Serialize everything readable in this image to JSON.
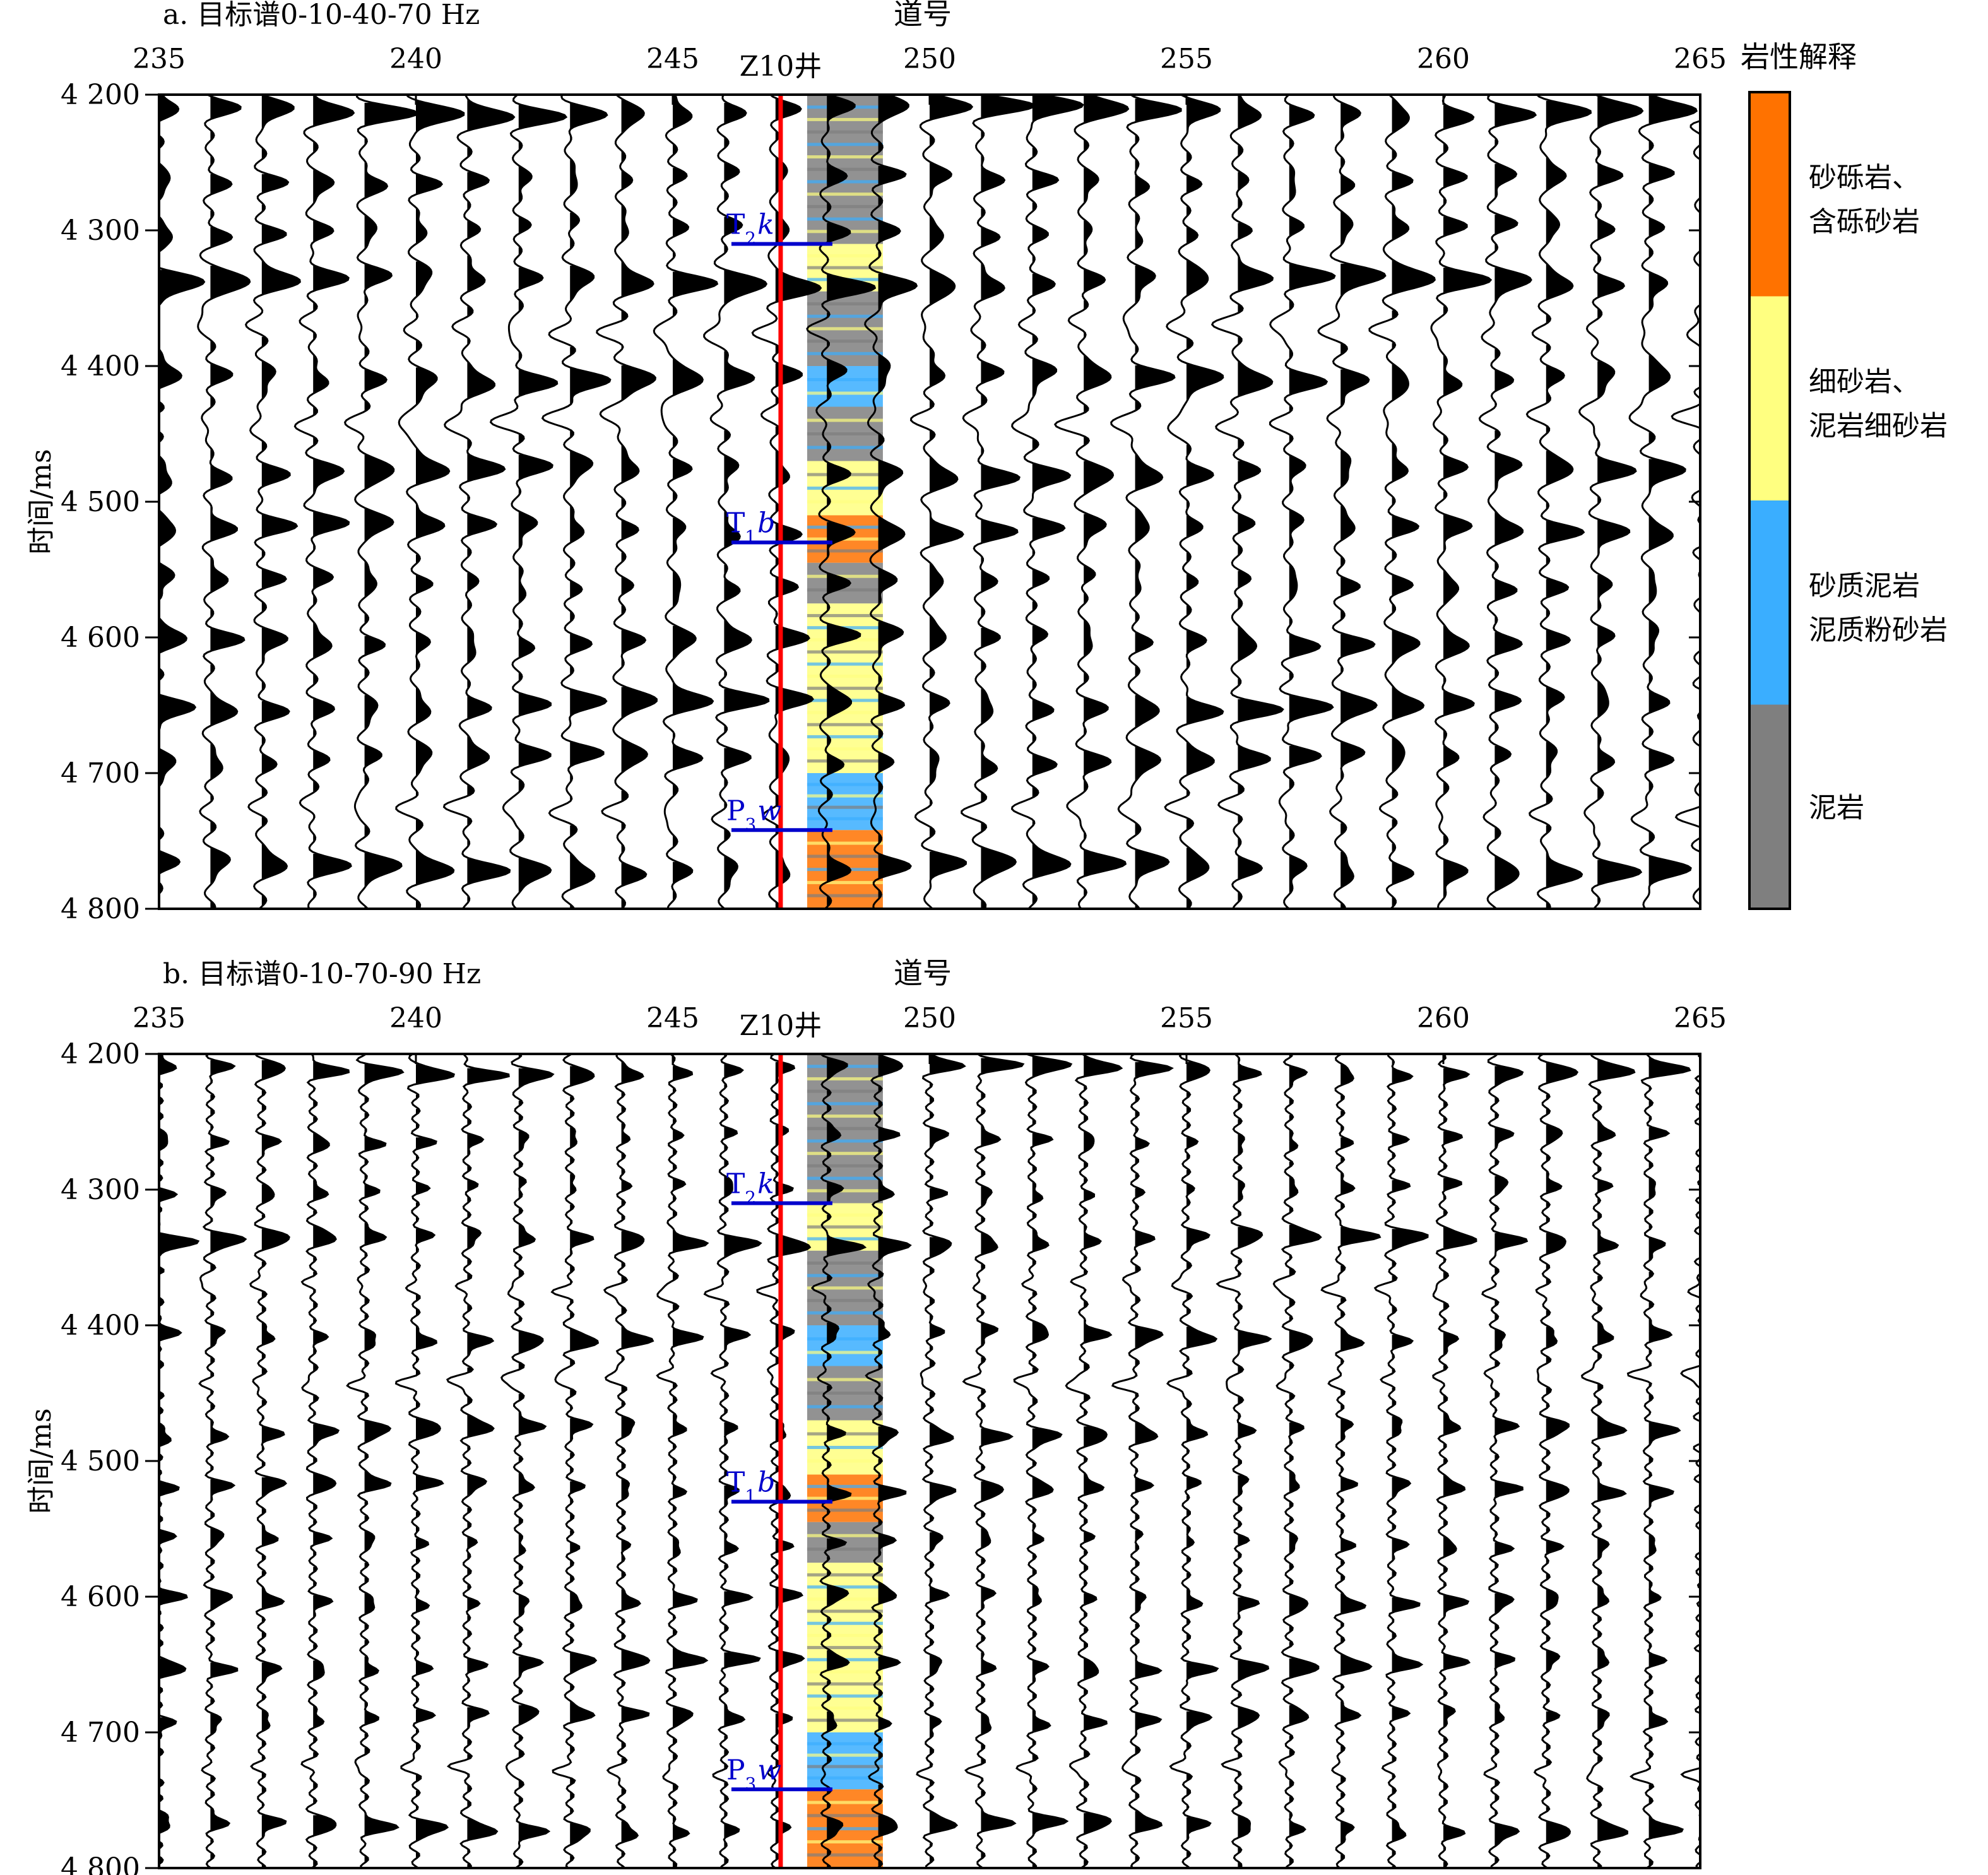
{
  "figure": {
    "legend": {
      "title": "岩性解释",
      "entries": [
        {
          "line1": "砂砾岩、",
          "line2": "含砾砂岩",
          "color": "#ff7200"
        },
        {
          "line1": "细砂岩、",
          "line2": "泥岩细砂岩",
          "color": "#ffff80"
        },
        {
          "line1": "砂质泥岩",
          "line2": "泥质粉砂岩",
          "color": "#3aaeff"
        },
        {
          "line1": "泥岩",
          "line2": "",
          "color": "#7f7f7f"
        }
      ]
    },
    "well_line_color": "#ff0000",
    "horizon_color": "#0000cc",
    "wiggle_color": "#000000"
  },
  "chart_data": [
    {
      "type": "seismic-wiggle",
      "title": "a. 目标谱0-10-40-70 Hz",
      "xlabel": "道号",
      "ylabel": "时间/ms",
      "xlim": [
        235,
        265
      ],
      "ylim": [
        4800,
        4200
      ],
      "x_ticks": [
        235,
        240,
        245,
        250,
        255,
        260,
        265
      ],
      "y_ticks": [
        4200,
        4300,
        4400,
        4500,
        4600,
        4700,
        4800
      ],
      "y_tick_labels": [
        "4 200",
        "4 300",
        "4 400",
        "4 500",
        "4 600",
        "4 700",
        "4 800"
      ],
      "traces": [
        235,
        236,
        237,
        238,
        239,
        240,
        241,
        242,
        243,
        244,
        245,
        246,
        247,
        248,
        249,
        250,
        251,
        252,
        253,
        254,
        255,
        256,
        257,
        258,
        259,
        260,
        261,
        262,
        263,
        264,
        265
      ],
      "well": {
        "name": "Z10井",
        "trace": 247.1
      },
      "horizons": [
        {
          "label": "T2k",
          "base": "T",
          "sub": "2",
          "suffix": "k",
          "time": 4310
        },
        {
          "label": "T1b",
          "base": "T",
          "sub": "1",
          "suffix": "b",
          "time": 4530
        },
        {
          "label": "P3w",
          "base": "P",
          "sub": "3",
          "suffix": "w",
          "time": 4742
        }
      ],
      "lithology_column": [
        {
          "top": 4200,
          "base": 4310,
          "lith": "泥岩"
        },
        {
          "top": 4310,
          "base": 4345,
          "lith": "细砂岩、泥岩细砂岩"
        },
        {
          "top": 4345,
          "base": 4400,
          "lith": "泥岩"
        },
        {
          "top": 4400,
          "base": 4430,
          "lith": "砂质泥岩、泥质粉砂岩"
        },
        {
          "top": 4430,
          "base": 4470,
          "lith": "泥岩"
        },
        {
          "top": 4470,
          "base": 4510,
          "lith": "细砂岩、泥岩细砂岩"
        },
        {
          "top": 4510,
          "base": 4545,
          "lith": "砂砾岩、含砾砂岩"
        },
        {
          "top": 4545,
          "base": 4575,
          "lith": "泥岩"
        },
        {
          "top": 4575,
          "base": 4700,
          "lith": "细砂岩、泥岩细砂岩"
        },
        {
          "top": 4700,
          "base": 4742,
          "lith": "砂质泥岩、泥质粉砂岩"
        },
        {
          "top": 4742,
          "base": 4800,
          "lith": "砂砾岩、含砾砂岩"
        }
      ]
    },
    {
      "type": "seismic-wiggle",
      "title": "b. 目标谱0-10-70-90 Hz",
      "xlabel": "道号",
      "ylabel": "时间/ms",
      "xlim": [
        235,
        265
      ],
      "ylim": [
        4800,
        4200
      ],
      "x_ticks": [
        235,
        240,
        245,
        250,
        255,
        260,
        265
      ],
      "y_ticks": [
        4200,
        4300,
        4400,
        4500,
        4600,
        4700,
        4800
      ],
      "y_tick_labels": [
        "4 200",
        "4 300",
        "4 400",
        "4 500",
        "4 600",
        "4 700",
        "4 800"
      ],
      "traces": [
        235,
        236,
        237,
        238,
        239,
        240,
        241,
        242,
        243,
        244,
        245,
        246,
        247,
        248,
        249,
        250,
        251,
        252,
        253,
        254,
        255,
        256,
        257,
        258,
        259,
        260,
        261,
        262,
        263,
        264,
        265
      ],
      "well": {
        "name": "Z10井",
        "trace": 247.1
      },
      "horizons": [
        {
          "label": "T2k",
          "base": "T",
          "sub": "2",
          "suffix": "k",
          "time": 4310
        },
        {
          "label": "T1b",
          "base": "T",
          "sub": "1",
          "suffix": "b",
          "time": 4530
        },
        {
          "label": "P3w",
          "base": "P",
          "sub": "3",
          "suffix": "w",
          "time": 4742
        }
      ],
      "lithology_column": [
        {
          "top": 4200,
          "base": 4310,
          "lith": "泥岩"
        },
        {
          "top": 4310,
          "base": 4345,
          "lith": "细砂岩、泥岩细砂岩"
        },
        {
          "top": 4345,
          "base": 4400,
          "lith": "泥岩"
        },
        {
          "top": 4400,
          "base": 4430,
          "lith": "砂质泥岩、泥质粉砂岩"
        },
        {
          "top": 4430,
          "base": 4470,
          "lith": "泥岩"
        },
        {
          "top": 4470,
          "base": 4510,
          "lith": "细砂岩、泥岩细砂岩"
        },
        {
          "top": 4510,
          "base": 4545,
          "lith": "砂砾岩、含砾砂岩"
        },
        {
          "top": 4545,
          "base": 4575,
          "lith": "泥岩"
        },
        {
          "top": 4575,
          "base": 4700,
          "lith": "细砂岩、泥岩细砂岩"
        },
        {
          "top": 4700,
          "base": 4742,
          "lith": "砂质泥岩、泥质粉砂岩"
        },
        {
          "top": 4742,
          "base": 4800,
          "lith": "砂砾岩、含砾砂岩"
        }
      ]
    }
  ]
}
